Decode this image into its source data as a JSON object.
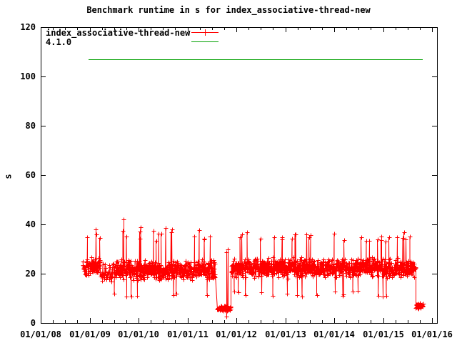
{
  "chart_data": {
    "type": "scatter",
    "title": "Benchmark runtime in s for index_associative-thread-new",
    "xlabel": "",
    "ylabel": "s",
    "grid": false,
    "x_axis": {
      "type": "date",
      "tick_labels": [
        "01/01/08",
        "01/01/09",
        "01/01/10",
        "01/01/11",
        "01/01/12",
        "01/01/13",
        "01/01/14",
        "01/01/15",
        "01/01/16"
      ],
      "start_year": 2008,
      "end_year": 2016.1,
      "minor_tick_interval_years": 0.25
    },
    "y_axis": {
      "label": "s",
      "ticks": [
        0,
        20,
        40,
        60,
        80,
        100,
        120
      ],
      "lim": [
        0,
        120
      ]
    },
    "legend": {
      "position": "top-left",
      "entries": [
        {
          "label": "index_associative-thread-new",
          "color": "#ff0000",
          "style": "linespoints-plus"
        },
        {
          "label": "4.1.0",
          "color": "#00a000",
          "style": "line"
        }
      ]
    },
    "series": [
      {
        "name": "index_associative-thread-new",
        "color": "#ff0000",
        "style": "linespoints",
        "marker": "plus",
        "seed": 1337,
        "description": "noisy benchmark runtimes, approx 15-33 s band with outage dips",
        "segments": [
          {
            "x_start": 2008.86,
            "x_end": 2009.22,
            "mean": 23.0,
            "spread": 4.5,
            "min": 15.0,
            "max": 33.0,
            "points_per_year": 240,
            "spike_prob": 0.03,
            "spike_lo": 33,
            "spike_hi": 38,
            "low_prob": 0.01
          },
          {
            "x_start": 2009.22,
            "x_end": 2009.5,
            "mean": 20.0,
            "spread": 4.5,
            "min": 13.0,
            "max": 29.0,
            "points_per_year": 110,
            "spike_prob": 0.01,
            "spike_lo": 29,
            "spike_hi": 33,
            "low_prob": 0.02
          },
          {
            "x_start": 2009.5,
            "x_end": 2011.57,
            "mean": 21.5,
            "spread": 4.5,
            "min": 13.0,
            "max": 33.0,
            "points_per_year": 240,
            "spike_prob": 0.025,
            "spike_lo": 33,
            "spike_hi": 39,
            "low_prob": 0.02
          },
          {
            "x_start": 2011.61,
            "x_end": 2011.89,
            "mean": 6.0,
            "spread": 1.3,
            "min": 3.5,
            "max": 9.0,
            "points_per_year": 280,
            "spike_prob": 0.04,
            "spike_lo": 25,
            "spike_hi": 32,
            "low_prob": 0.0
          },
          {
            "x_start": 2011.89,
            "x_end": 2015.67,
            "mean": 22.5,
            "spread": 4.5,
            "min": 14.0,
            "max": 33.0,
            "points_per_year": 240,
            "spike_prob": 0.025,
            "spike_lo": 33,
            "spike_hi": 37,
            "low_prob": 0.02
          },
          {
            "x_start": 2015.67,
            "x_end": 2015.82,
            "mean": 7.0,
            "spread": 1.3,
            "min": 4.5,
            "max": 10.0,
            "points_per_year": 260,
            "spike_prob": 0.02,
            "spike_lo": 11,
            "spike_hi": 13,
            "low_prob": 0.0
          }
        ],
        "outliers": [
          {
            "x": 2009.13,
            "y": 38
          },
          {
            "x": 2009.7,
            "y": 42
          },
          {
            "x": 2011.8,
            "y": 2.6
          },
          {
            "x": 2013.2,
            "y": 36
          },
          {
            "x": 2015.55,
            "y": 35
          }
        ]
      }
    ],
    "reference_lines": [
      {
        "name": "4.1.0",
        "value": 107,
        "x_start": 2008.98,
        "x_end": 2015.81,
        "color": "#00a000"
      }
    ],
    "colors": {
      "series_red": "#ff0000",
      "reference_green": "#00a000",
      "frame_black": "#000000",
      "background": "#ffffff"
    }
  }
}
